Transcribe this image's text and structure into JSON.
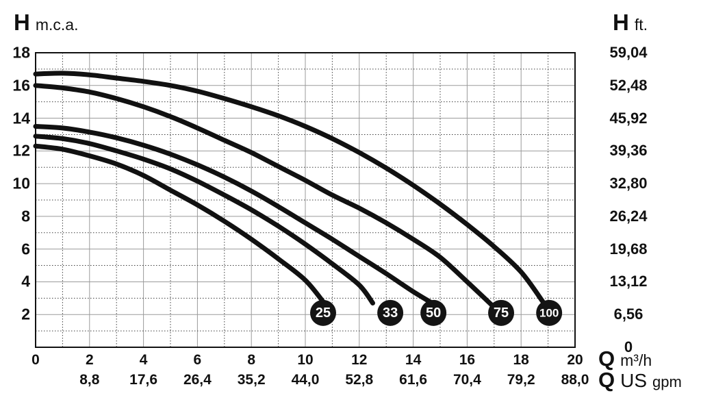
{
  "chart_data": {
    "type": "line",
    "title_left": {
      "symbol": "H",
      "unit": "m.c.a."
    },
    "title_right": {
      "symbol": "H",
      "unit": "ft."
    },
    "x_axis_primary": {
      "symbol": "Q",
      "unit": "m³/h",
      "range": [
        0,
        20
      ],
      "grid_step": 1,
      "tick_labels": [
        "0",
        "2",
        "4",
        "6",
        "8",
        "10",
        "12",
        "14",
        "16",
        "18",
        "20"
      ],
      "tick_positions": [
        0,
        2,
        4,
        6,
        8,
        10,
        12,
        14,
        16,
        18,
        20
      ]
    },
    "x_axis_secondary": {
      "symbol": "Q",
      "unit_main": "US",
      "unit_sub": "gpm",
      "tick_labels": [
        "8,8",
        "17,6",
        "26,4",
        "35,2",
        "44,0",
        "52,8",
        "61,6",
        "70,4",
        "79,2",
        "88,0"
      ],
      "tick_positions": [
        2,
        4,
        6,
        8,
        10,
        12,
        14,
        16,
        18,
        20
      ]
    },
    "y_axis_left": {
      "range": [
        0,
        18
      ],
      "grid_step": 1,
      "tick_labels": [
        "18",
        "16",
        "14",
        "12",
        "10",
        "8",
        "6",
        "4",
        "2"
      ],
      "tick_positions": [
        18,
        16,
        14,
        12,
        10,
        8,
        6,
        4,
        2
      ]
    },
    "y_axis_right": {
      "tick_labels": [
        "59,04",
        "52,48",
        "45,92",
        "39,36",
        "32,80",
        "26,24",
        "19,68",
        "13,12",
        "6,56",
        "0"
      ],
      "tick_positions": [
        18,
        16,
        14,
        12,
        10,
        8,
        6,
        4,
        2,
        0
      ]
    },
    "series": [
      {
        "name": "25",
        "label": "25",
        "label_pos": [
          10.66,
          2.1
        ],
        "points": [
          [
            0,
            12.3
          ],
          [
            1,
            12.1
          ],
          [
            2,
            11.7
          ],
          [
            3,
            11.2
          ],
          [
            4,
            10.5
          ],
          [
            5,
            9.6
          ],
          [
            6,
            8.7
          ],
          [
            7,
            7.7
          ],
          [
            8,
            6.6
          ],
          [
            9,
            5.4
          ],
          [
            10,
            4.1
          ],
          [
            10.7,
            2.7
          ]
        ]
      },
      {
        "name": "33",
        "label": "33",
        "label_pos": [
          13.15,
          2.1
        ],
        "points": [
          [
            0,
            12.9
          ],
          [
            1,
            12.75
          ],
          [
            2,
            12.45
          ],
          [
            3,
            12.0
          ],
          [
            4,
            11.5
          ],
          [
            5,
            10.9
          ],
          [
            6,
            10.15
          ],
          [
            7,
            9.3
          ],
          [
            8,
            8.4
          ],
          [
            9,
            7.4
          ],
          [
            10,
            6.3
          ],
          [
            11,
            5.1
          ],
          [
            12,
            3.8
          ],
          [
            12.5,
            2.7
          ]
        ]
      },
      {
        "name": "50",
        "label": "50",
        "label_pos": [
          14.75,
          2.1
        ],
        "points": [
          [
            0,
            13.5
          ],
          [
            1,
            13.4
          ],
          [
            2,
            13.15
          ],
          [
            3,
            12.8
          ],
          [
            4,
            12.35
          ],
          [
            5,
            11.8
          ],
          [
            6,
            11.15
          ],
          [
            7,
            10.4
          ],
          [
            8,
            9.55
          ],
          [
            9,
            8.6
          ],
          [
            10,
            7.6
          ],
          [
            11,
            6.6
          ],
          [
            12,
            5.55
          ],
          [
            13,
            4.5
          ],
          [
            14,
            3.4
          ],
          [
            14.7,
            2.7
          ]
        ]
      },
      {
        "name": "75",
        "label": "75",
        "label_pos": [
          17.26,
          2.1
        ],
        "points": [
          [
            0,
            16.0
          ],
          [
            1,
            15.85
          ],
          [
            2,
            15.6
          ],
          [
            3,
            15.2
          ],
          [
            4,
            14.7
          ],
          [
            5,
            14.1
          ],
          [
            6,
            13.4
          ],
          [
            7,
            12.65
          ],
          [
            8,
            11.9
          ],
          [
            9,
            11.05
          ],
          [
            10,
            10.2
          ],
          [
            11,
            9.3
          ],
          [
            12,
            8.5
          ],
          [
            13,
            7.6
          ],
          [
            14,
            6.6
          ],
          [
            15,
            5.5
          ],
          [
            16,
            4.0
          ],
          [
            16.9,
            2.6
          ]
        ]
      },
      {
        "name": "100",
        "label": "100",
        "label_pos": [
          19.04,
          2.1
        ],
        "points": [
          [
            0,
            16.7
          ],
          [
            1,
            16.75
          ],
          [
            2,
            16.65
          ],
          [
            3,
            16.45
          ],
          [
            4,
            16.25
          ],
          [
            5,
            16.0
          ],
          [
            6,
            15.65
          ],
          [
            7,
            15.2
          ],
          [
            8,
            14.7
          ],
          [
            9,
            14.15
          ],
          [
            10,
            13.5
          ],
          [
            11,
            12.75
          ],
          [
            12,
            11.9
          ],
          [
            13,
            10.95
          ],
          [
            14,
            9.9
          ],
          [
            15,
            8.75
          ],
          [
            16,
            7.5
          ],
          [
            17,
            6.15
          ],
          [
            18,
            4.6
          ],
          [
            18.8,
            2.8
          ]
        ]
      }
    ],
    "colors": {
      "curve": "#111111",
      "grid_solid": "#9a9a9a",
      "grid_dotted": "#3d3d3d",
      "border": "#111111",
      "label_circle_bg": "#141414",
      "label_circle_text": "#ffffff",
      "text": "#111111",
      "background": "#ffffff"
    },
    "legend_position": "on-curve-end",
    "grid": "on"
  }
}
